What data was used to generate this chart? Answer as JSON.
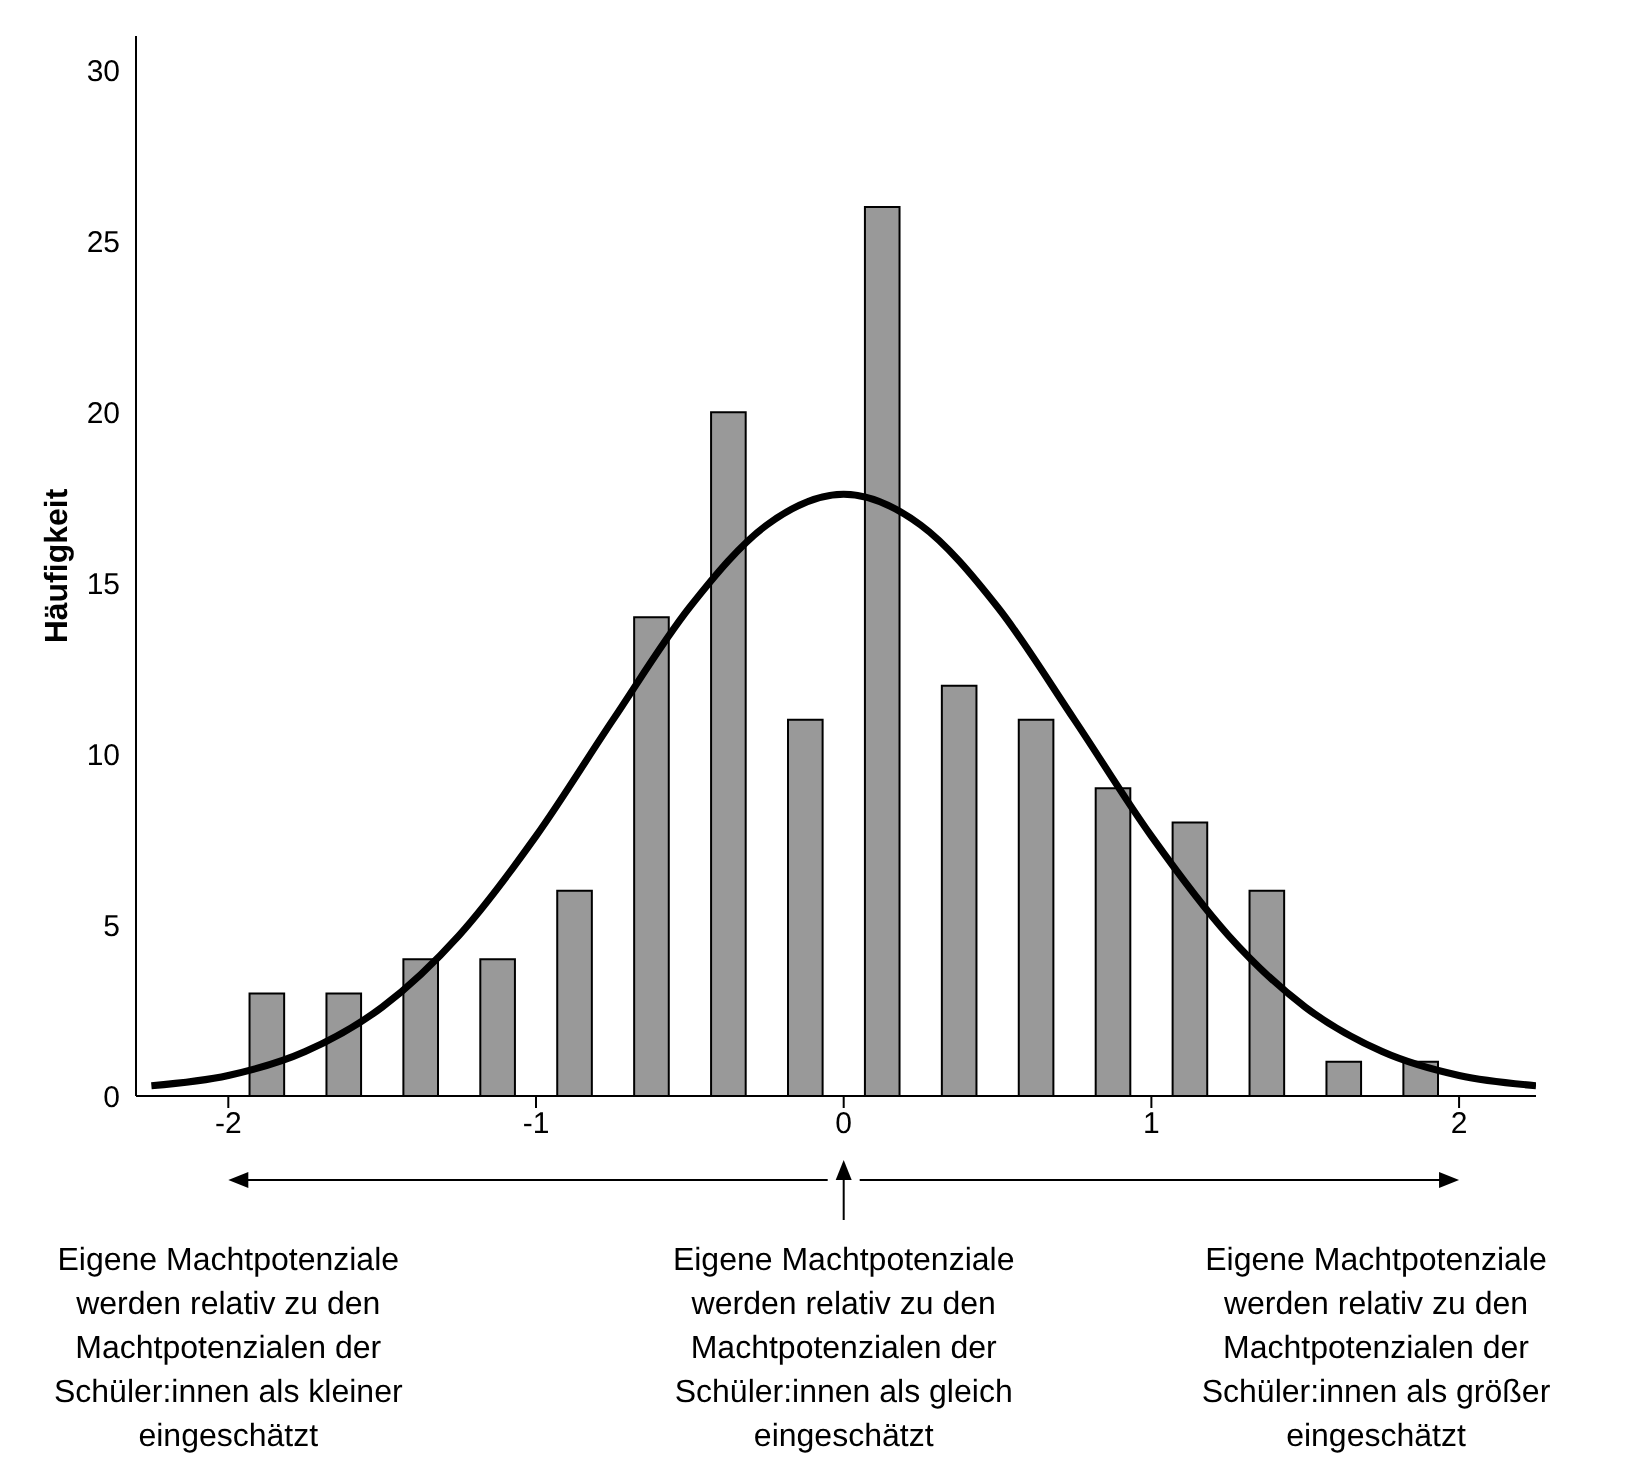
{
  "chart_data": {
    "type": "histogram",
    "ylabel": "Häufigkeit",
    "bins": [
      -2,
      -1.75,
      -1.5,
      -1.25,
      -1,
      -0.75,
      -0.5,
      -0.25,
      0,
      0.25,
      0.5,
      0.75,
      1,
      1.25,
      1.5,
      1.75,
      2
    ],
    "values": [
      3,
      3,
      4,
      4,
      6,
      14,
      20,
      11,
      26,
      12,
      11,
      9,
      8,
      6,
      1,
      1
    ],
    "color": "#999999",
    "series": [
      {
        "type": "line",
        "color": "#000000",
        "x": [
          -2.25,
          -2,
          -1.75,
          -1.5,
          -1.25,
          -1,
          -0.75,
          -0.5,
          -0.25,
          0,
          0.25,
          0.5,
          0.75,
          1,
          1.25,
          1.5,
          1.75,
          2,
          2.25
        ],
        "values": [
          0.3,
          0.6,
          1.3,
          2.6,
          4.7,
          7.6,
          11,
          14.3,
          16.7,
          17.6,
          16.7,
          14.3,
          11,
          7.6,
          4.7,
          2.6,
          1.3,
          0.6,
          0.3
        ]
      }
    ],
    "xlim": [
      -2.3,
      2.25
    ],
    "xticks": [
      -2,
      -1,
      0,
      1,
      2
    ],
    "ylim": [
      0,
      31
    ],
    "yticks": [
      0,
      5,
      10,
      15,
      20,
      25,
      30
    ],
    "grid": false,
    "legend": false,
    "annotations": [
      "Eigene Machtpotenziale werden relativ zu den Machtpotenzialen der Schüler:innen als kleiner eingeschätzt",
      "Eigene Machtpotenziale werden relativ zu den Machtpotenzialen der Schüler:innen als gleich eingeschätzt",
      "Eigene Machtpotenziale werden relativ zu den Machtpotenzialen der Schüler:innen als größer eingeschätzt"
    ]
  }
}
